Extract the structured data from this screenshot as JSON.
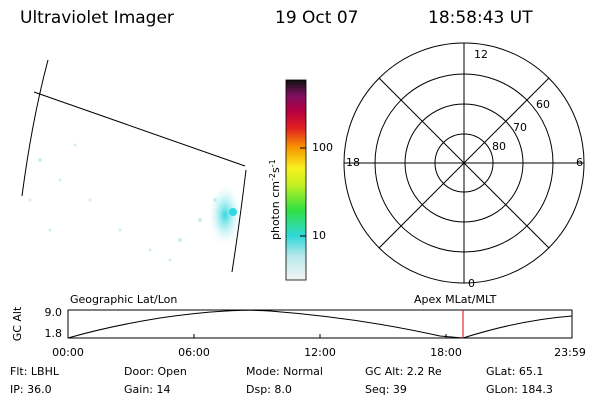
{
  "header": {
    "title": "Ultraviolet Imager",
    "date": "19 Oct 07",
    "time": "18:58:43 UT"
  },
  "colorbar": {
    "label_base": "photon cm",
    "label_exp1": "-2",
    "label_unit2": "s",
    "label_exp2": "-1",
    "ticks": [
      "100",
      "10"
    ]
  },
  "polar": {
    "mlt_labels": [
      "12",
      "18",
      "6",
      "0"
    ],
    "lat_labels": [
      "60",
      "70",
      "80"
    ]
  },
  "orbit_plot": {
    "left_title": "Geographic Lat/Lon",
    "right_title": "Apex MLat/MLT",
    "y_label": "GC Alt",
    "y_ticks": [
      "9.0",
      "1.8"
    ],
    "x_ticks": [
      "00:00",
      "06:00",
      "12:00",
      "18:00",
      "23:59"
    ]
  },
  "info": {
    "rows": [
      [
        "Flt: LBHL",
        "Door: Open",
        "Mode: Normal",
        "GC Alt: 2.2 Re",
        "GLat: 65.1"
      ],
      [
        "IP: 36.0",
        "Gain: 14",
        "Dsp: 8.0",
        "Seq: 39",
        "GLon: 184.3"
      ]
    ]
  }
}
